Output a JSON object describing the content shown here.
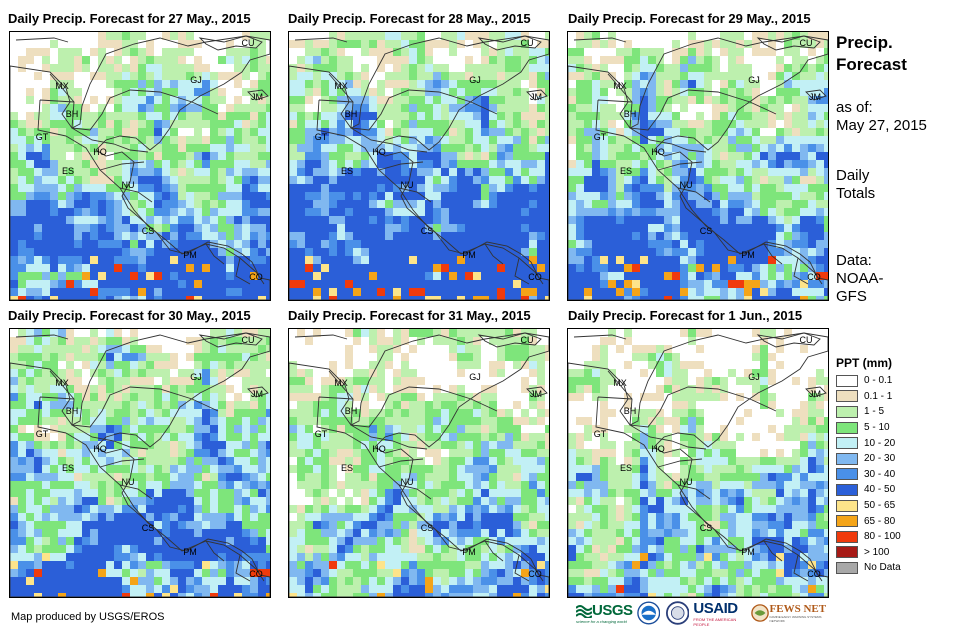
{
  "panels": [
    {
      "title": "Daily Precip. Forecast for 27 May., 2015"
    },
    {
      "title": "Daily Precip. Forecast for 28 May., 2015"
    },
    {
      "title": "Daily Precip. Forecast for 29 May., 2015"
    },
    {
      "title": "Daily Precip. Forecast for 30 May., 2015"
    },
    {
      "title": "Daily Precip. Forecast for 31 May., 2015"
    },
    {
      "title": "Daily Precip. Forecast for 1 Jun., 2015"
    }
  ],
  "country_labels": [
    "MX",
    "BH",
    "GT",
    "HO",
    "ES",
    "NU",
    "CS",
    "PM",
    "CU",
    "GJ",
    "JM",
    "CO"
  ],
  "side": {
    "title_line1": "Precip.",
    "title_line2": "Forecast",
    "asof_label": "as of:",
    "asof_date": "May 27, 2015",
    "daily_line1": "Daily",
    "daily_line2": "Totals",
    "data_line1": "Data:",
    "data_line2": "NOAA-",
    "data_line3": "GFS"
  },
  "legend": {
    "title": "PPT (mm)",
    "items": [
      {
        "label": "0 - 0.1",
        "color": "#ffffff"
      },
      {
        "label": "0.1 - 1",
        "color": "#eedfbf"
      },
      {
        "label": "1 - 5",
        "color": "#bdf0ae"
      },
      {
        "label": "5 - 10",
        "color": "#7ee57b"
      },
      {
        "label": "10 - 20",
        "color": "#c2f0f5"
      },
      {
        "label": "20 - 30",
        "color": "#80b8f0"
      },
      {
        "label": "30 - 40",
        "color": "#4a90e8"
      },
      {
        "label": "40 - 50",
        "color": "#2b5fd8"
      },
      {
        "label": "50 - 65",
        "color": "#fde48a"
      },
      {
        "label": "65 - 80",
        "color": "#f4a418"
      },
      {
        "label": "80 - 100",
        "color": "#f03a0c"
      },
      {
        "label": "> 100",
        "color": "#a71a16"
      },
      {
        "label": "No Data",
        "color": "#a8a8a8"
      }
    ]
  },
  "credit": "Map produced by USGS/EROS",
  "logos": {
    "usgs": "USGS",
    "usgs_tagline": "science for a changing world",
    "usaid": "USAID",
    "usaid_tagline": "FROM THE AMERICAN PEOPLE",
    "fews": "FEWS NET",
    "fews_tagline": "FAMINE EARLY WARNING SYSTEMS NETWORK"
  }
}
